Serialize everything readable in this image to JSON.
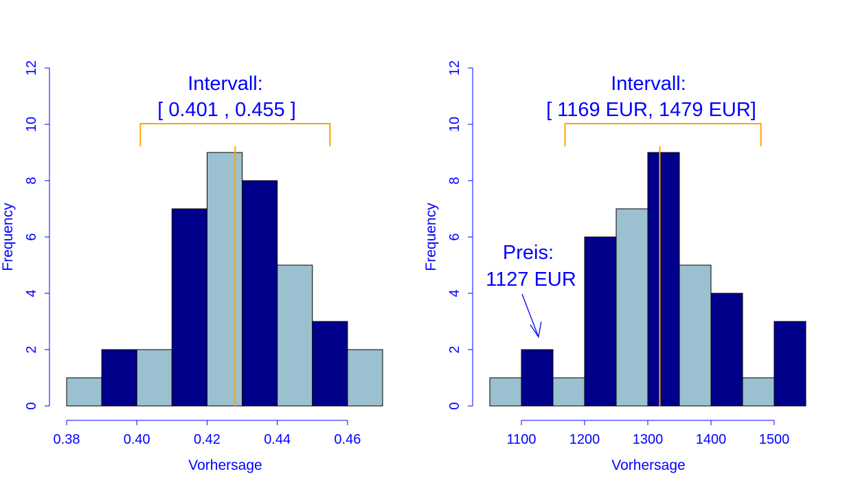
{
  "colors": {
    "bar_light": "#9bc0cf",
    "bar_dark": "#00008b",
    "axis": "#0000ff",
    "interval": "#ffa500"
  },
  "chart_data": [
    {
      "type": "bar",
      "xlabel": "Vorhersage",
      "ylabel": "Frequency",
      "ylim": [
        0,
        12
      ],
      "yticks": [
        0,
        2,
        4,
        6,
        8,
        10,
        12
      ],
      "xlim": [
        0.38,
        0.47
      ],
      "xticks": [
        0.38,
        0.4,
        0.42,
        0.44,
        0.46
      ],
      "xtick_labels": [
        "0.38",
        "0.40",
        "0.42",
        "0.44",
        "0.46"
      ],
      "ytick_labels": [
        "0",
        "2",
        "4",
        "6",
        "8",
        "10",
        "12"
      ],
      "bins": [
        0.38,
        0.39,
        0.4,
        0.41,
        0.42,
        0.43,
        0.44,
        0.45,
        0.46,
        0.47
      ],
      "counts": [
        1,
        2,
        2,
        7,
        9,
        8,
        5,
        3,
        2
      ],
      "bar_colors": [
        "light",
        "dark",
        "light",
        "dark",
        "light",
        "dark",
        "light",
        "dark",
        "light"
      ],
      "vline": 0.428,
      "interval": [
        0.401,
        0.455
      ],
      "interval_title": "Intervall:",
      "interval_text": "[ 0.401 , 0.455 ]"
    },
    {
      "type": "bar",
      "xlabel": "Vorhersage",
      "ylabel": "Frequency",
      "ylim": [
        0,
        12
      ],
      "yticks": [
        0,
        2,
        4,
        6,
        8,
        10,
        12
      ],
      "xlim": [
        1050,
        1550
      ],
      "xticks": [
        1100,
        1200,
        1300,
        1400,
        1500
      ],
      "xtick_labels": [
        "1100",
        "1200",
        "1300",
        "1400",
        "1500"
      ],
      "ytick_labels": [
        "0",
        "2",
        "4",
        "6",
        "8",
        "10",
        "12"
      ],
      "bins": [
        1050,
        1100,
        1150,
        1200,
        1250,
        1300,
        1350,
        1400,
        1450,
        1500,
        1550
      ],
      "counts": [
        1,
        2,
        1,
        6,
        7,
        9,
        5,
        4,
        1,
        3
      ],
      "bar_colors": [
        "light",
        "dark",
        "light",
        "dark",
        "light",
        "dark",
        "light",
        "dark",
        "light",
        "dark"
      ],
      "vline": 1319,
      "interval": [
        1169,
        1479
      ],
      "interval_title": "Intervall:",
      "interval_text": "[ 1169 EUR, 1479 EUR]",
      "price_label": "Preis:",
      "price_value": "1127 EUR",
      "price": 1127
    }
  ]
}
